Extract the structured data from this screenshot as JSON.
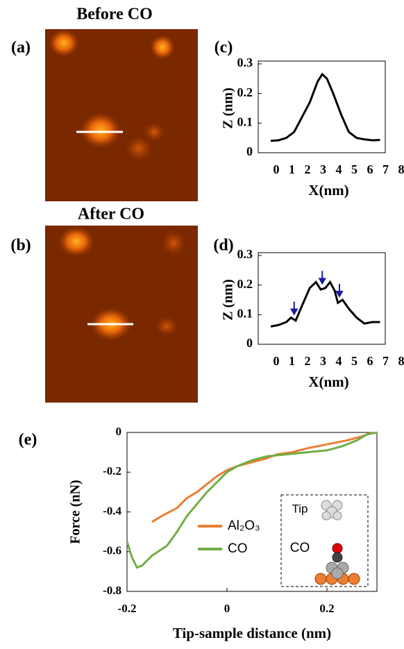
{
  "images": [
    {
      "label": "(a)",
      "title": "Before CO"
    },
    {
      "label": "(b)",
      "title": "After CO"
    }
  ],
  "inset": {
    "tip": "Tip",
    "molecule": "CO"
  },
  "chart_data": [
    {
      "type": "line",
      "label": "(c)",
      "xlabel": "X(nm)",
      "ylabel": "Z (nm)",
      "xlim": [
        0,
        8
      ],
      "ylim": [
        0,
        0.3
      ],
      "xticks": [
        0,
        1,
        2,
        3,
        4,
        5,
        6,
        7,
        8
      ],
      "yticks": [
        0,
        0.1,
        0.2,
        0.3
      ],
      "series": [
        {
          "color": "#000000",
          "x": [
            0,
            0.5,
            1,
            1.5,
            2,
            2.5,
            3,
            3.3,
            3.6,
            4,
            4.5,
            5,
            5.5,
            6,
            6.5,
            7
          ],
          "values": [
            0.04,
            0.042,
            0.05,
            0.07,
            0.12,
            0.17,
            0.24,
            0.265,
            0.25,
            0.2,
            0.13,
            0.07,
            0.05,
            0.045,
            0.042,
            0.043
          ]
        }
      ]
    },
    {
      "type": "line",
      "label": "(d)",
      "xlabel": "X(nm)",
      "ylabel": "Z (nm)",
      "xlim": [
        0,
        8
      ],
      "ylim": [
        0,
        0.3
      ],
      "xticks": [
        0,
        1,
        2,
        3,
        4,
        5,
        6,
        7,
        8
      ],
      "yticks": [
        0,
        0.1,
        0.2,
        0.3
      ],
      "arrows": [
        1.5,
        3.3,
        4.4
      ],
      "arrow_color": "#1a1aa0",
      "series": [
        {
          "color": "#000000",
          "x": [
            0,
            0.5,
            1,
            1.3,
            1.6,
            2,
            2.5,
            2.9,
            3.2,
            3.5,
            3.8,
            4.1,
            4.3,
            4.6,
            5,
            5.5,
            6,
            6.5,
            7
          ],
          "values": [
            0.06,
            0.065,
            0.075,
            0.09,
            0.08,
            0.13,
            0.19,
            0.21,
            0.185,
            0.19,
            0.21,
            0.18,
            0.14,
            0.15,
            0.12,
            0.09,
            0.07,
            0.075,
            0.075
          ]
        }
      ]
    },
    {
      "type": "line",
      "label": "(e)",
      "xlabel": "Tip-sample distance (nm)",
      "ylabel": "Force (nN)",
      "xlim": [
        -0.2,
        0.3
      ],
      "ylim": [
        -0.8,
        0
      ],
      "xticks": [
        -0.2,
        0,
        0.2
      ],
      "yticks": [
        0,
        -0.2,
        -0.4,
        -0.6,
        -0.8
      ],
      "series": [
        {
          "name": "Al₂O₃",
          "color": "#ed7d31",
          "x": [
            -0.15,
            -0.13,
            -0.1,
            -0.08,
            -0.06,
            -0.04,
            -0.02,
            0,
            0.02,
            0.05,
            0.08,
            0.1,
            0.13,
            0.16,
            0.2,
            0.24,
            0.27,
            0.29
          ],
          "values": [
            -0.45,
            -0.42,
            -0.38,
            -0.33,
            -0.3,
            -0.26,
            -0.22,
            -0.19,
            -0.17,
            -0.15,
            -0.13,
            -0.11,
            -0.1,
            -0.08,
            -0.06,
            -0.04,
            -0.02,
            0
          ]
        },
        {
          "name": "CO",
          "color": "#70ad47",
          "x": [
            -0.2,
            -0.19,
            -0.18,
            -0.17,
            -0.15,
            -0.12,
            -0.1,
            -0.08,
            -0.06,
            -0.04,
            -0.02,
            0,
            0.02,
            0.05,
            0.08,
            0.12,
            0.16,
            0.2,
            0.23,
            0.26,
            0.28,
            0.3
          ],
          "values": [
            -0.55,
            -0.63,
            -0.68,
            -0.67,
            -0.62,
            -0.57,
            -0.5,
            -0.42,
            -0.36,
            -0.3,
            -0.25,
            -0.2,
            -0.17,
            -0.14,
            -0.12,
            -0.11,
            -0.1,
            -0.09,
            -0.07,
            -0.04,
            -0.01,
            0
          ]
        }
      ]
    }
  ]
}
